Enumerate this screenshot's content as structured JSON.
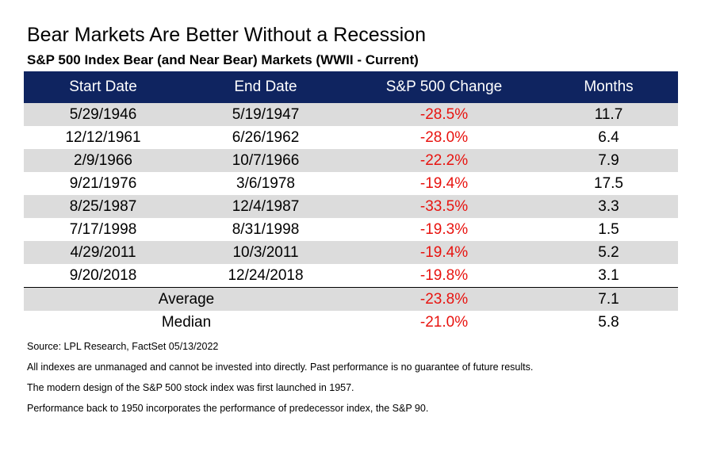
{
  "title": "Bear Markets Are Better Without a Recession",
  "subtitle": "S&P 500 Index Bear (and Near Bear) Markets (WWII - Current)",
  "columns": [
    "Start Date",
    "End Date",
    "S&P 500 Change",
    "Months"
  ],
  "rows": [
    {
      "start": "5/29/1946",
      "end": "5/19/1947",
      "change": "-28.5%",
      "months": "11.7"
    },
    {
      "start": "12/12/1961",
      "end": "6/26/1962",
      "change": "-28.0%",
      "months": "6.4"
    },
    {
      "start": "2/9/1966",
      "end": "10/7/1966",
      "change": "-22.2%",
      "months": "7.9"
    },
    {
      "start": "9/21/1976",
      "end": "3/6/1978",
      "change": "-19.4%",
      "months": "17.5"
    },
    {
      "start": "8/25/1987",
      "end": "12/4/1987",
      "change": "-33.5%",
      "months": "3.3"
    },
    {
      "start": "7/17/1998",
      "end": "8/31/1998",
      "change": "-19.3%",
      "months": "1.5"
    },
    {
      "start": "4/29/2011",
      "end": "10/3/2011",
      "change": "-19.4%",
      "months": "5.2"
    },
    {
      "start": "9/20/2018",
      "end": "12/24/2018",
      "change": "-19.8%",
      "months": "3.1"
    }
  ],
  "summary": [
    {
      "label": "Average",
      "change": "-23.8%",
      "months": "7.1"
    },
    {
      "label": "Median",
      "change": "-21.0%",
      "months": "5.8"
    }
  ],
  "notes": [
    "Source: LPL Research, FactSet 05/13/2022",
    "All indexes are unmanaged and cannot be invested into directly. Past performance is no guarantee of future results.",
    "The modern design of the S&P 500 stock index was first launched in 1957.",
    "Performance back to 1950 incorporates the performance of predecessor index, the S&P 90."
  ],
  "colors": {
    "header_bg": "#0f2460",
    "header_text": "#ffffff",
    "shade": "#dcdcdc",
    "negative": "#e8130f"
  }
}
